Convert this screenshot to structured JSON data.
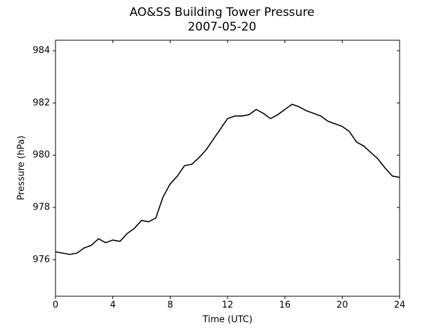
{
  "chart_data": {
    "type": "line",
    "title": "AO&SS Building Tower Pressure",
    "subtitle": "2007-05-20",
    "x_label": "Time (UTC)",
    "y_label": "Pressure (hPa)",
    "x": [
      0,
      0.5,
      1,
      1.5,
      2,
      2.5,
      3,
      3.5,
      4,
      4.5,
      5,
      5.5,
      6,
      6.5,
      7,
      7.5,
      8,
      8.5,
      9,
      9.5,
      10,
      10.5,
      11,
      11.5,
      12,
      12.5,
      13,
      13.5,
      14,
      14.5,
      15,
      15.5,
      16,
      16.5,
      17,
      17.5,
      18,
      18.5,
      19,
      19.5,
      20,
      20.5,
      21,
      21.5,
      22,
      22.5,
      23,
      23.5,
      24
    ],
    "series": [
      {
        "name": "Pressure",
        "color": "#000000",
        "values": [
          976.3,
          976.25,
          976.2,
          976.25,
          976.45,
          976.55,
          976.8,
          976.65,
          976.75,
          976.7,
          977.0,
          977.2,
          977.5,
          977.45,
          977.6,
          978.4,
          978.9,
          979.2,
          979.6,
          979.65,
          979.9,
          980.2,
          980.6,
          981.0,
          981.4,
          981.5,
          981.5,
          981.55,
          981.75,
          981.6,
          981.4,
          981.55,
          981.75,
          981.95,
          981.85,
          981.7,
          981.6,
          981.5,
          981.3,
          981.2,
          981.1,
          980.9,
          980.5,
          980.35,
          980.1,
          979.85,
          979.5,
          979.2,
          979.15
        ]
      }
    ],
    "xlim": [
      0,
      24
    ],
    "xticks": [
      0,
      4,
      8,
      12,
      16,
      20,
      24
    ],
    "ylim": [
      974.6,
      984.4
    ],
    "yticks": [
      976,
      978,
      980,
      982,
      984
    ]
  }
}
